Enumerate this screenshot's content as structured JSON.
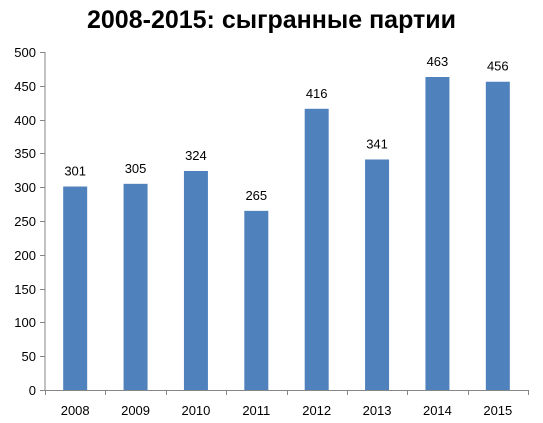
{
  "chart_data": {
    "type": "bar",
    "title": "2008-2015: сыгранные партии",
    "categories": [
      "2008",
      "2009",
      "2010",
      "2011",
      "2012",
      "2013",
      "2014",
      "2015"
    ],
    "values": [
      301,
      305,
      324,
      265,
      416,
      341,
      463,
      456
    ],
    "data_labels": [
      "301",
      "305",
      "324",
      "265",
      "416",
      "341",
      "463",
      "456"
    ],
    "ylim": [
      0,
      500
    ],
    "yticks": [
      "0",
      "50",
      "100",
      "150",
      "200",
      "250",
      "300",
      "350",
      "400",
      "450",
      "500"
    ],
    "xlabel": "",
    "ylabel": "",
    "grid": false,
    "legend": "none",
    "bar_color": "#4F81BD",
    "axis_color": "#868686"
  }
}
